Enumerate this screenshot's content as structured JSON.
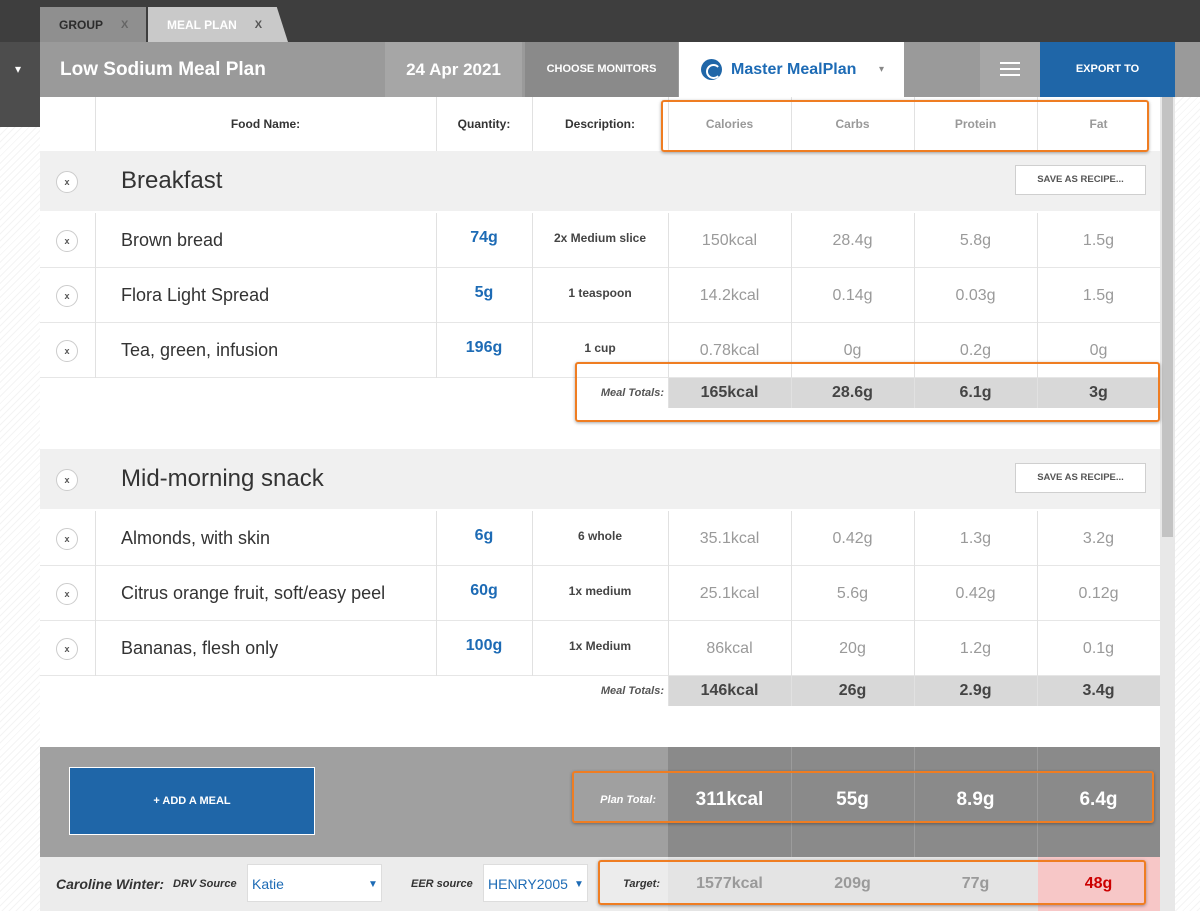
{
  "tabs": [
    {
      "label": "GROUP",
      "close": "X"
    },
    {
      "label": "MEAL PLAN",
      "close": "X"
    }
  ],
  "header": {
    "menu_caret": "▾",
    "title": "Low Sodium Meal Plan",
    "date": "24 Apr 2021",
    "choose_monitors": "CHOOSE MONITORS",
    "master_plan": "Master MealPlan",
    "master_caret": "▾",
    "export": "EXPORT TO"
  },
  "columns": {
    "food": "Food Name:",
    "quantity": "Quantity:",
    "description": "Description:",
    "calories": "Calories",
    "carbs": "Carbs",
    "protein": "Protein",
    "fat": "Fat"
  },
  "remove_glyph": "x",
  "meals": [
    {
      "name": "Breakfast",
      "save_recipe": "SAVE AS RECIPE...",
      "items": [
        {
          "food": "Brown bread",
          "qty": "74g",
          "desc": "2x Medium slice",
          "cal": "150kcal",
          "carbs": "28.4g",
          "protein": "5.8g",
          "fat": "1.5g"
        },
        {
          "food": "Flora Light Spread",
          "qty": "5g",
          "desc": "1 teaspoon",
          "cal": "14.2kcal",
          "carbs": "0.14g",
          "protein": "0.03g",
          "fat": "1.5g"
        },
        {
          "food": "Tea, green, infusion",
          "qty": "196g",
          "desc": "1 cup",
          "cal": "0.78kcal",
          "carbs": "0g",
          "protein": "0.2g",
          "fat": "0g"
        }
      ],
      "totals_label": "Meal Totals:",
      "totals": {
        "cal": "165kcal",
        "carbs": "28.6g",
        "protein": "6.1g",
        "fat": "3g"
      }
    },
    {
      "name": "Mid-morning snack",
      "save_recipe": "SAVE AS RECIPE...",
      "items": [
        {
          "food": "Almonds, with skin",
          "qty": "6g",
          "desc": "6 whole",
          "cal": "35.1kcal",
          "carbs": "0.42g",
          "protein": "1.3g",
          "fat": "3.2g"
        },
        {
          "food": "Citrus orange fruit, soft/easy peel",
          "qty": "60g",
          "desc": "1x medium",
          "cal": "25.1kcal",
          "carbs": "5.6g",
          "protein": "0.42g",
          "fat": "0.12g"
        },
        {
          "food": "Bananas, flesh only",
          "qty": "100g",
          "desc": "1x Medium",
          "cal": "86kcal",
          "carbs": "20g",
          "protein": "1.2g",
          "fat": "0.1g"
        }
      ],
      "totals_label": "Meal Totals:",
      "totals": {
        "cal": "146kcal",
        "carbs": "26g",
        "protein": "2.9g",
        "fat": "3.4g"
      }
    }
  ],
  "add_meal": "+ ADD A MEAL",
  "plan_total": {
    "label": "Plan Total:",
    "cal": "311kcal",
    "carbs": "55g",
    "protein": "8.9g",
    "fat": "6.4g"
  },
  "footer": {
    "client": "Caroline Winter:",
    "drv_label": "DRV Source",
    "drv_value": "Katie",
    "eer_label": "EER source",
    "eer_value": "HENRY2005 I",
    "target_label": "Target:",
    "target": {
      "cal": "1577kcal",
      "carbs": "209g",
      "protein": "77g",
      "fat": "48g"
    },
    "fat_alert_color": "#cc0000"
  },
  "colors": {
    "accent": "#1f66a8",
    "highlight": "#ef7d22"
  }
}
